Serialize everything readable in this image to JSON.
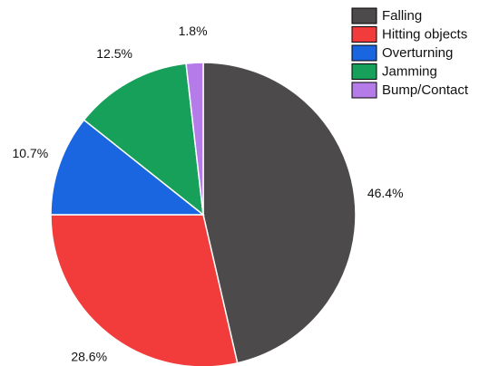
{
  "chart_data": {
    "type": "pie",
    "categories": [
      "Falling",
      "Hitting objects",
      "Overturning",
      "Jamming",
      "Bump/Contact"
    ],
    "values": [
      46.4,
      28.6,
      10.7,
      12.5,
      1.8
    ],
    "value_labels": [
      "46.4%",
      "28.6%",
      "10.7%",
      "12.5%",
      "1.8%"
    ],
    "colors": [
      "#4d4a4b",
      "#f23c3c",
      "#1a66e0",
      "#16a05a",
      "#b57be8"
    ],
    "legend": "upper right"
  }
}
